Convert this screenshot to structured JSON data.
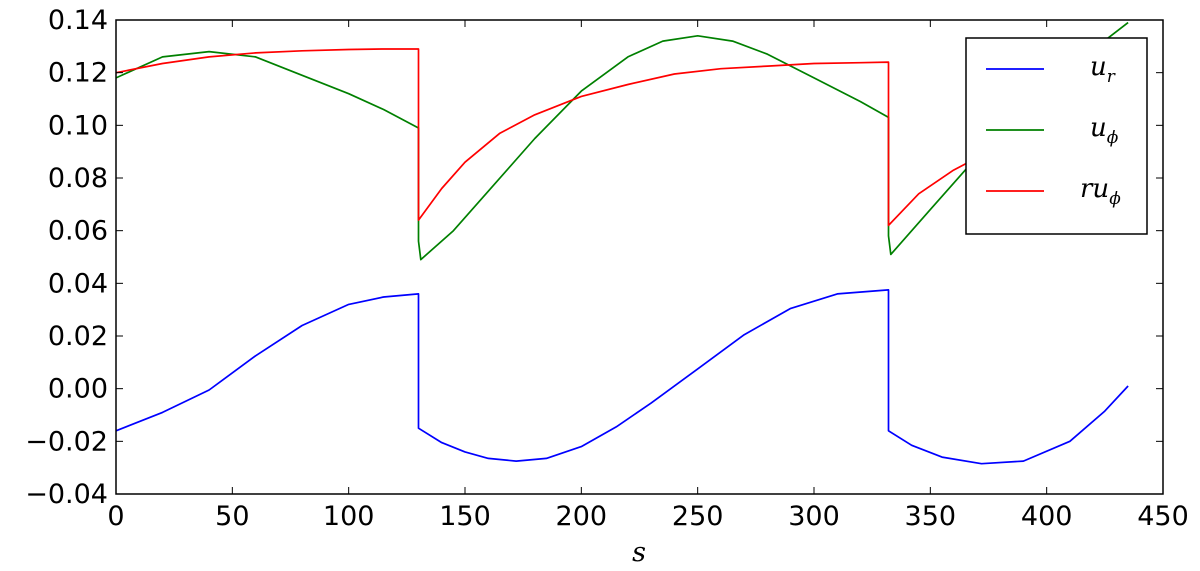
{
  "chart_data": {
    "type": "line",
    "xlabel": "s",
    "ylabel": "",
    "title": "",
    "xlim": [
      0,
      450
    ],
    "ylim": [
      -0.04,
      0.14
    ],
    "xticks": [
      0,
      50,
      100,
      150,
      200,
      250,
      300,
      350,
      400,
      450
    ],
    "xtick_labels": [
      "0",
      "50",
      "100",
      "150",
      "200",
      "250",
      "300",
      "350",
      "400",
      "450"
    ],
    "yticks": [
      -0.04,
      -0.02,
      0.0,
      0.02,
      0.04,
      0.06,
      0.08,
      0.1,
      0.12,
      0.14
    ],
    "ytick_labels": [
      "−0.04",
      "−0.02",
      "0.00",
      "0.02",
      "0.04",
      "0.06",
      "0.08",
      "0.10",
      "0.12",
      "0.14"
    ],
    "grid": false,
    "legend_position": "top-right",
    "series": [
      {
        "name": "u_r",
        "legend_base": "u",
        "legend_sub": "r",
        "color": "#0000ff",
        "x": [
          0,
          20,
          40,
          60,
          80,
          100,
          115,
          130,
          130,
          140,
          150,
          160,
          172,
          185,
          200,
          215,
          230,
          250,
          270,
          290,
          310,
          332,
          332,
          342,
          355,
          372,
          390,
          410,
          425,
          435
        ],
        "y": [
          -0.016,
          -0.009,
          -0.0005,
          0.0125,
          0.024,
          0.032,
          0.0348,
          0.036,
          -0.015,
          -0.0205,
          -0.024,
          -0.0265,
          -0.0275,
          -0.0265,
          -0.022,
          -0.0145,
          -0.0055,
          0.0075,
          0.0205,
          0.0305,
          0.036,
          0.0375,
          -0.016,
          -0.0215,
          -0.026,
          -0.0285,
          -0.0275,
          -0.02,
          -0.0085,
          0.001
        ]
      },
      {
        "name": "u_phi",
        "legend_base": "u",
        "legend_sub": "ϕ",
        "color": "#008000",
        "x": [
          0,
          20,
          40,
          60,
          80,
          100,
          115,
          130,
          130,
          131,
          145,
          160,
          180,
          200,
          220,
          235,
          250,
          265,
          280,
          300,
          320,
          332,
          332,
          333,
          350,
          370,
          390,
          410,
          435
        ],
        "y": [
          0.118,
          0.126,
          0.128,
          0.126,
          0.119,
          0.112,
          0.106,
          0.099,
          0.056,
          0.049,
          0.06,
          0.075,
          0.095,
          0.113,
          0.126,
          0.132,
          0.134,
          0.132,
          0.127,
          0.118,
          0.109,
          0.103,
          0.058,
          0.051,
          0.068,
          0.088,
          0.106,
          0.122,
          0.139
        ]
      },
      {
        "name": "ru_phi",
        "legend_base": "ru",
        "legend_sub": "ϕ",
        "color": "#ff0000",
        "x": [
          0,
          20,
          40,
          60,
          80,
          100,
          115,
          130,
          130,
          140,
          150,
          165,
          180,
          200,
          220,
          240,
          260,
          280,
          300,
          320,
          332,
          332,
          345,
          360,
          375,
          390
        ],
        "y": [
          0.12,
          0.1235,
          0.126,
          0.1275,
          0.1283,
          0.1288,
          0.129,
          0.129,
          0.064,
          0.076,
          0.086,
          0.097,
          0.104,
          0.111,
          0.1155,
          0.1195,
          0.1215,
          0.1225,
          0.1235,
          0.1238,
          0.124,
          0.062,
          0.074,
          0.083,
          0.09,
          0.0955
        ]
      }
    ]
  }
}
